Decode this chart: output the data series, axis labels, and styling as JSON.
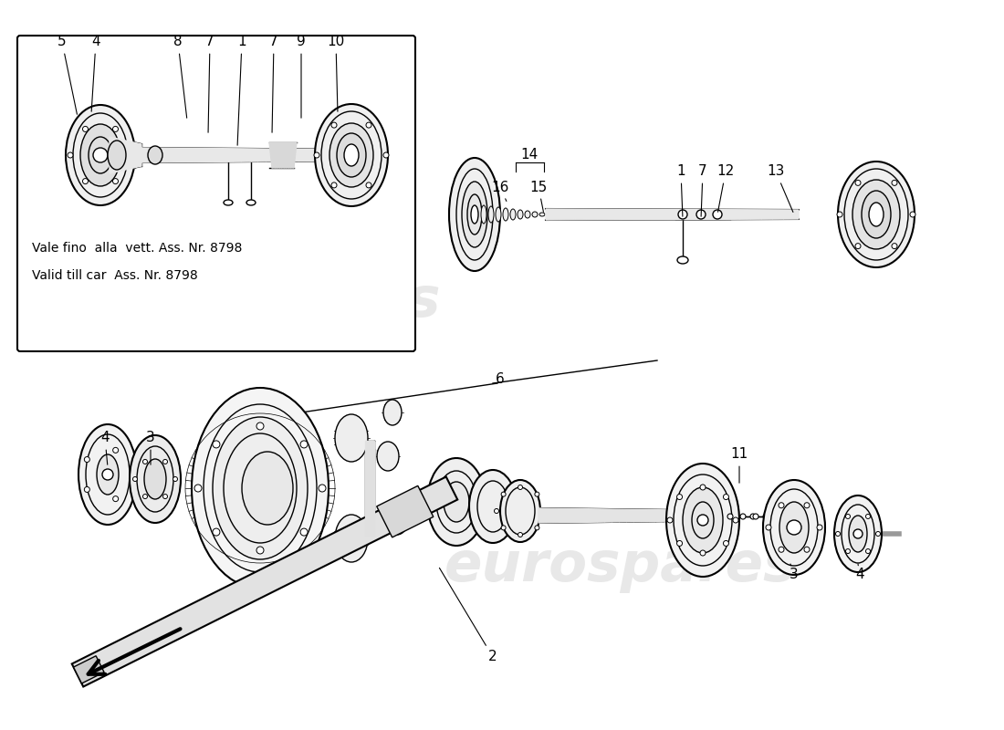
{
  "bg": "#ffffff",
  "wm_color": "#cccccc",
  "wm_alpha": 0.45,
  "wm_fontsize": 44,
  "box_text1": "Vale fino  alla  vett. Ass. Nr. 8798",
  "box_text2": "Valid till car  Ass. Nr. 8798",
  "label_fs": 11,
  "lw_thin": 0.6,
  "lw_med": 1.0,
  "lw_thick": 1.5
}
